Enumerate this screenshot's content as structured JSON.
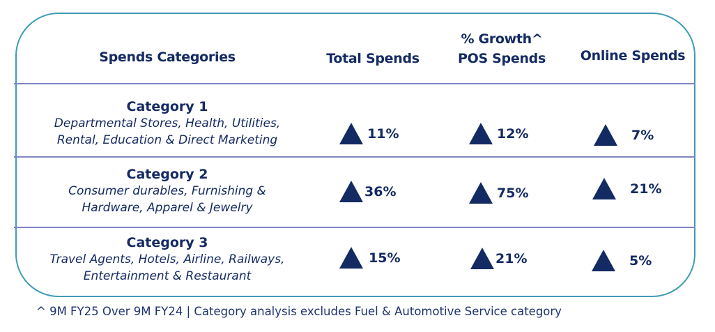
{
  "headers": {
    "categories": "Spends Categories",
    "total": "Total Spends",
    "growth": "% Growth^",
    "pos": "POS Spends",
    "online": "Online Spends"
  },
  "rows": [
    {
      "title": "Category 1",
      "line1": "Departmental Stores, Health, Utilities,",
      "line2": "Rental, Education & Direct Marketing",
      "total": "11%",
      "pos": "12%",
      "online": "7%"
    },
    {
      "title": "Category 2",
      "line1": "Consumer durables,  Furnishing &",
      "line2": "Hardware, Apparel & Jewelry",
      "total": "36%",
      "pos": "75%",
      "online": "21%"
    },
    {
      "title": "Category 3",
      "line1": "Travel Agents, Hotels, Airline, Railways,",
      "line2": "Entertainment & Restaurant",
      "total": "15%",
      "pos": "21%",
      "online": "5%"
    }
  ],
  "footnote": "^ 9M FY25 Over 9M FY24 | Category analysis excludes Fuel & Automotive Service category",
  "colors": {
    "border": "#3d9cb6",
    "text": "#142a63",
    "divider": "#7f86c2"
  }
}
